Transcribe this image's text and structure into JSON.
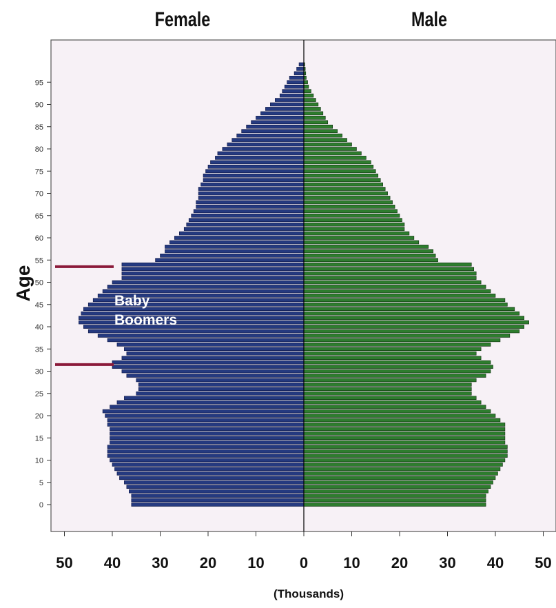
{
  "chart_data": {
    "type": "bar",
    "subtype": "population-pyramid",
    "panel_titles": {
      "left": "Female",
      "right": "Male"
    },
    "ylabel": "Age",
    "xlabel": "(Thousands)",
    "xlim": [
      -50,
      50
    ],
    "x_ticks": [
      -50,
      -40,
      -30,
      -20,
      -10,
      0,
      10,
      20,
      30,
      40,
      50
    ],
    "x_tick_labels": [
      "50",
      "40",
      "30",
      "20",
      "10",
      "0",
      "10",
      "20",
      "30",
      "40",
      "50"
    ],
    "y_ticks": [
      0,
      5,
      10,
      15,
      20,
      25,
      30,
      35,
      40,
      45,
      50,
      55,
      60,
      65,
      70,
      75,
      80,
      85,
      90,
      95
    ],
    "y_tick_labels": [
      "0",
      "5",
      "10",
      "15",
      "20",
      "25",
      "30",
      "35",
      "40",
      "45",
      "50",
      "55",
      "60",
      "65",
      "70",
      "75",
      "80",
      "85",
      "90",
      "95"
    ],
    "ages": [
      0,
      1,
      2,
      3,
      4,
      5,
      6,
      7,
      8,
      9,
      10,
      11,
      12,
      13,
      14,
      15,
      16,
      17,
      18,
      19,
      20,
      21,
      22,
      23,
      24,
      25,
      26,
      27,
      28,
      29,
      30,
      31,
      32,
      33,
      34,
      35,
      36,
      37,
      38,
      39,
      40,
      41,
      42,
      43,
      44,
      45,
      46,
      47,
      48,
      49,
      50,
      51,
      52,
      53,
      54,
      55,
      56,
      57,
      58,
      59,
      60,
      61,
      62,
      63,
      64,
      65,
      66,
      67,
      68,
      69,
      70,
      71,
      72,
      73,
      74,
      75,
      76,
      77,
      78,
      79,
      80,
      81,
      82,
      83,
      84,
      85,
      86,
      87,
      88,
      89,
      90,
      91,
      92,
      93,
      94,
      95,
      96,
      97,
      98,
      99
    ],
    "series": [
      {
        "name": "Female",
        "color": "#253a80",
        "values": [
          36,
          36,
          36,
          36.5,
          37,
          37.5,
          38.5,
          39,
          39.5,
          40,
          40.5,
          41,
          41,
          41,
          40.5,
          40.5,
          40.5,
          40.5,
          41,
          41,
          41.5,
          42,
          40.5,
          39,
          37.5,
          35,
          34.5,
          34.5,
          35,
          37,
          38,
          40,
          40,
          38,
          37,
          37.5,
          39,
          41,
          43,
          45,
          46,
          47,
          47,
          46.5,
          46,
          45,
          44,
          43,
          42,
          41,
          40,
          38,
          38,
          38,
          38,
          31,
          30,
          29,
          29,
          28,
          27,
          26,
          25,
          24.5,
          24,
          23.5,
          23,
          22.5,
          22.5,
          22,
          22,
          22,
          21.5,
          21,
          21,
          20.5,
          20,
          19.5,
          18.5,
          18,
          17,
          16,
          15,
          14,
          13,
          12,
          11,
          10,
          9,
          8,
          7,
          6,
          5,
          4.5,
          4,
          3.5,
          3,
          2,
          1.5,
          1
        ]
      },
      {
        "name": "Male",
        "color": "#2e7d2e",
        "values": [
          38,
          38,
          38,
          38.5,
          39,
          39.5,
          40,
          40.5,
          41,
          41.5,
          42,
          42.5,
          42.5,
          42.5,
          42,
          42,
          42,
          42,
          42,
          41,
          40,
          39,
          38,
          37,
          36,
          35,
          35,
          35,
          36,
          38,
          39,
          39.5,
          39,
          37,
          36,
          37,
          39,
          41,
          43,
          45,
          46,
          47,
          46,
          45,
          44,
          42.5,
          42,
          40,
          39,
          38,
          37,
          36,
          36,
          35.5,
          35,
          28,
          27.5,
          27,
          26,
          24,
          23,
          22,
          21,
          21,
          20.5,
          20,
          19.5,
          19,
          18.5,
          18,
          17.5,
          17,
          16.5,
          16,
          15.5,
          15,
          14.5,
          14,
          13,
          12,
          11,
          10,
          9,
          8,
          7,
          6,
          5,
          4.5,
          4,
          3.5,
          3,
          2.5,
          2,
          1.5,
          1,
          0.8,
          0.5,
          0.4,
          0.3,
          0.2
        ]
      }
    ],
    "annotations": [
      {
        "text_lines": [
          "Baby",
          "Boomers"
        ],
        "age_range": [
          31.5,
          53.5
        ],
        "marker_color": "#8b1a3a"
      }
    ],
    "background_color": "#f7f1f6",
    "grid": false,
    "legend": "none"
  }
}
